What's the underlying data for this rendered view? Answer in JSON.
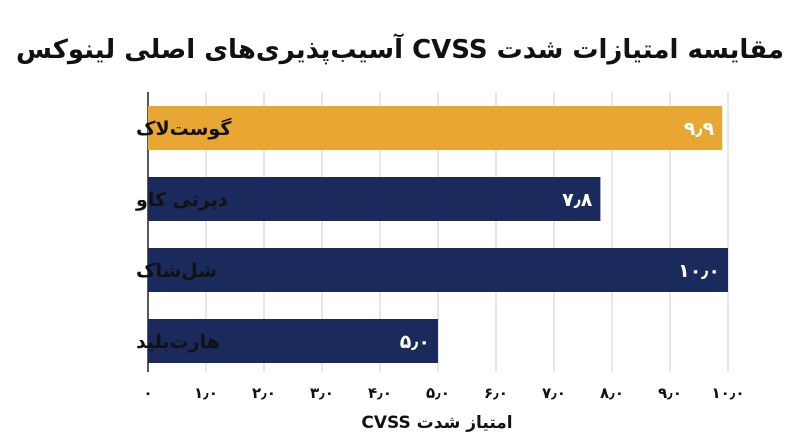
{
  "chart_data": {
    "type": "bar",
    "orientation": "horizontal",
    "title": "مقایسه امتیازات شدت CVSS آسیب‌پذیری‌های اصلی لینوکس",
    "xlabel": "امتیاز شدت CVSS",
    "ylabel": "",
    "xlim": [
      0,
      10
    ],
    "grid": true,
    "categories": [
      "گوست‌لاک",
      "دیرتی کاو",
      "شل‌شاک",
      "هارت‌بلید"
    ],
    "values": [
      9.9,
      7.8,
      10.0,
      5.0
    ],
    "value_labels": [
      "۹٫۹",
      "۷٫۸",
      "۱۰٫۰",
      "۵٫۰"
    ],
    "x_ticks": [
      0,
      1,
      2,
      3,
      4,
      5,
      6,
      7,
      8,
      9,
      10
    ],
    "x_tick_labels": [
      "۰",
      "۱٫۰",
      "۲٫۰",
      "۳٫۰",
      "۴٫۰",
      "۵٫۰",
      "۶٫۰",
      "۷٫۰",
      "۸٫۰",
      "۹٫۰",
      "۱۰٫۰"
    ],
    "bar_colors": [
      "#e8a733",
      "#1b2a5c",
      "#1b2a5c",
      "#1b2a5c"
    ]
  }
}
